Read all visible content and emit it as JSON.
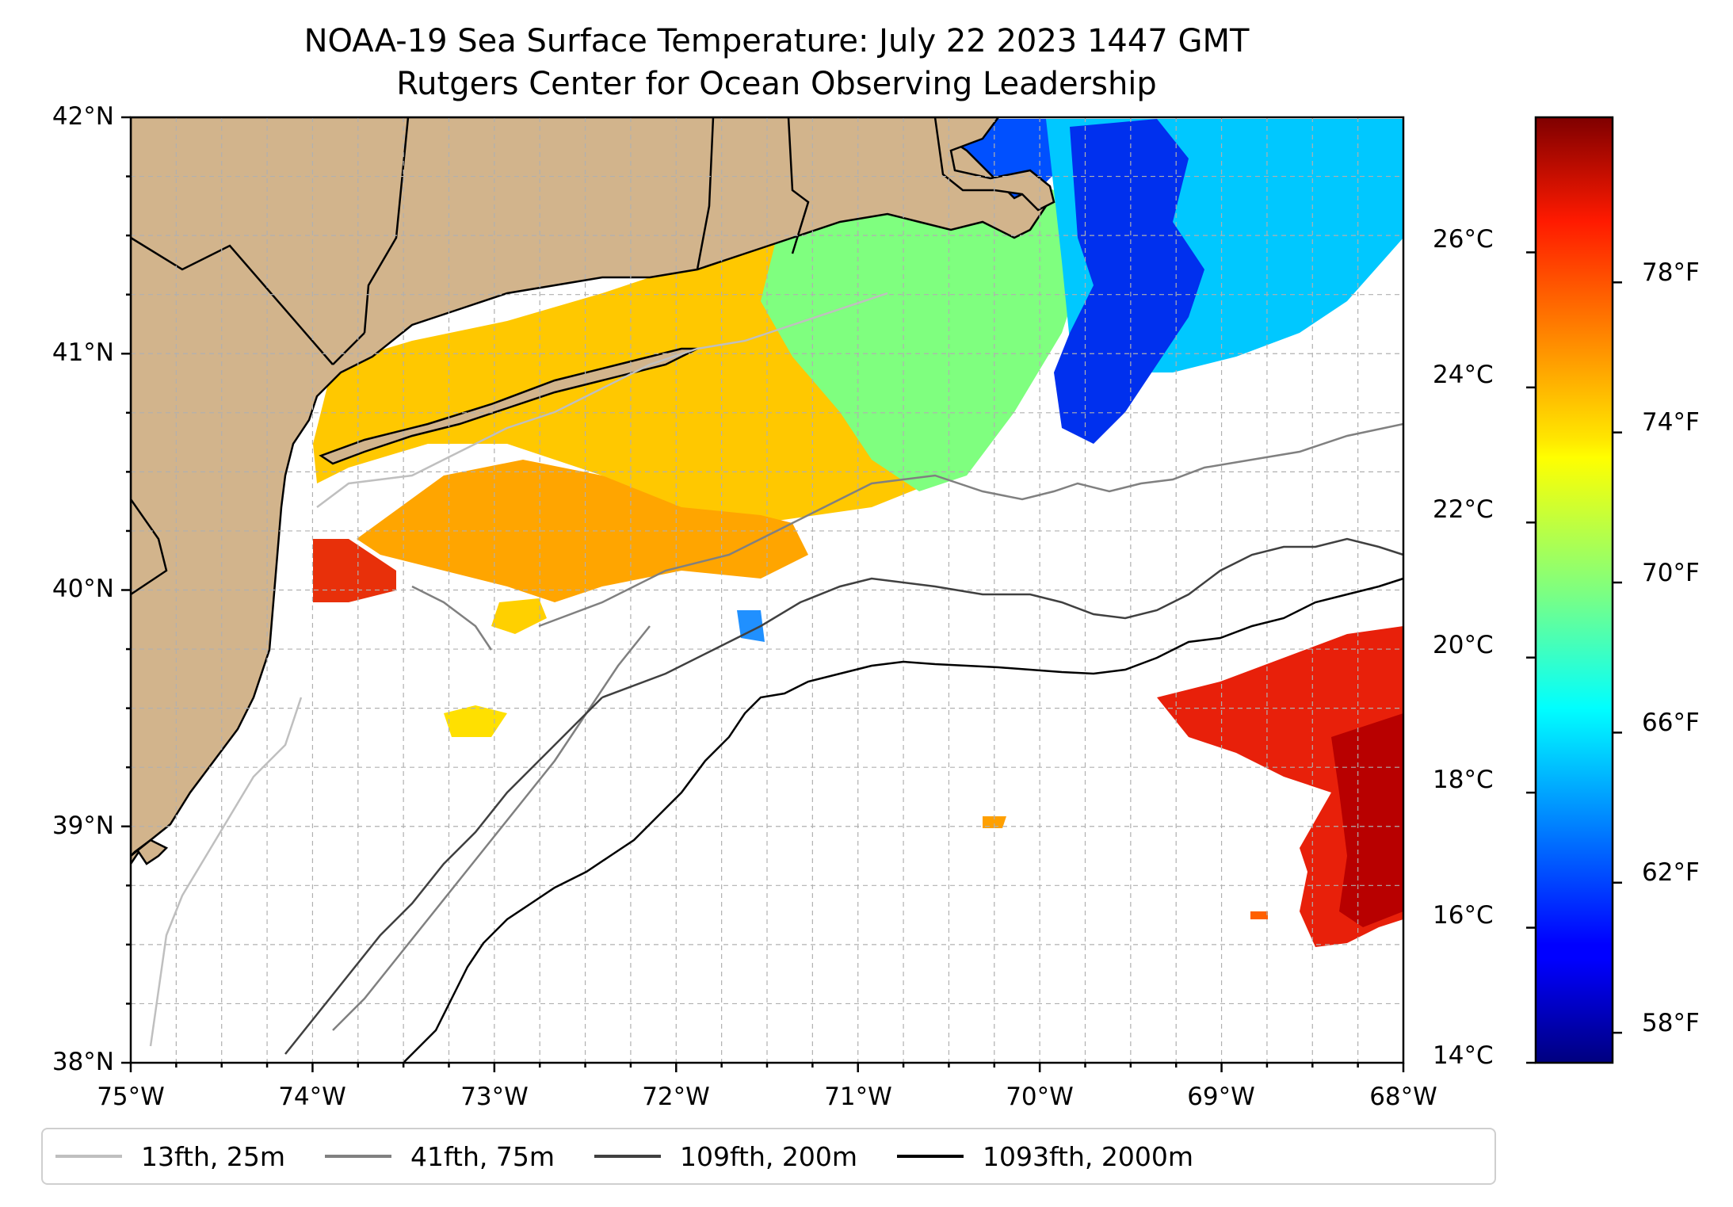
{
  "title": "NOAA-19 Sea Surface Temperature: July 22 2023 1447 GMT",
  "subtitle": "Rutgers Center for Ocean Observing Leadership",
  "map": {
    "extent": {
      "lon": [
        -75,
        -68
      ],
      "lat": [
        38,
        42
      ]
    },
    "lat_labels": [
      "42°N",
      "41°N",
      "40°N",
      "39°N",
      "38°N"
    ],
    "lon_labels": [
      "75°W",
      "74°W",
      "73°W",
      "72°W",
      "71°W",
      "70°W",
      "69°W",
      "68°W"
    ],
    "land_color": "#d2b48c",
    "grid": "dashed"
  },
  "colorbar": {
    "colormap": "jet",
    "range_c": [
      14,
      28
    ],
    "celsius_ticks": [
      "26°C",
      "24°C",
      "22°C",
      "20°C",
      "18°C",
      "16°C",
      "14°C"
    ],
    "fahrenheit_ticks": [
      "78°F",
      "74°F",
      "70°F",
      "66°F",
      "62°F",
      "58°F"
    ]
  },
  "legend": [
    {
      "label": "13fth, 25m",
      "color": "#bfbfbf"
    },
    {
      "label": "41fth, 75m",
      "color": "#808080"
    },
    {
      "label": "109fth, 200m",
      "color": "#404040"
    },
    {
      "label": "1093fth, 2000m",
      "color": "#000000"
    }
  ]
}
